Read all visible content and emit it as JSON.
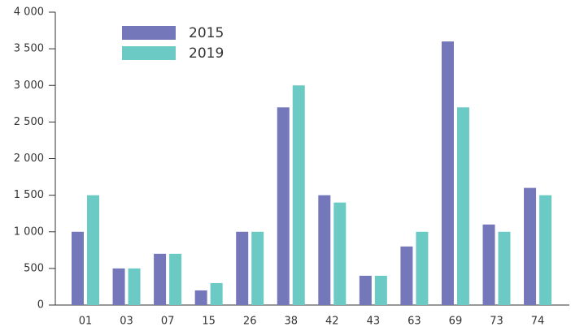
{
  "chart_data": {
    "type": "bar",
    "categories": [
      "01",
      "03",
      "07",
      "15",
      "26",
      "38",
      "42",
      "43",
      "63",
      "69",
      "73",
      "74"
    ],
    "series": [
      {
        "name": "2015",
        "color": "#7478bb",
        "values": [
          1000,
          500,
          700,
          200,
          1000,
          2700,
          1500,
          400,
          800,
          3600,
          1100,
          1600
        ]
      },
      {
        "name": "2019",
        "color": "#6ccac4",
        "values": [
          1500,
          500,
          700,
          300,
          1000,
          3000,
          1400,
          400,
          1000,
          2700,
          1000,
          1500
        ]
      }
    ],
    "ylim": [
      0,
      4000
    ],
    "yticks": [
      0,
      500,
      {
        "value": 1000,
        "label": "1 000"
      },
      {
        "value": 1500,
        "label": "1 500"
      },
      {
        "value": 2000,
        "label": "2 000"
      },
      {
        "value": 2500,
        "label": "2 500"
      },
      {
        "value": 3000,
        "label": "3 000"
      },
      {
        "value": 3500,
        "label": "3 500"
      },
      {
        "value": 4000,
        "label": "4 000"
      }
    ],
    "grid": false
  }
}
